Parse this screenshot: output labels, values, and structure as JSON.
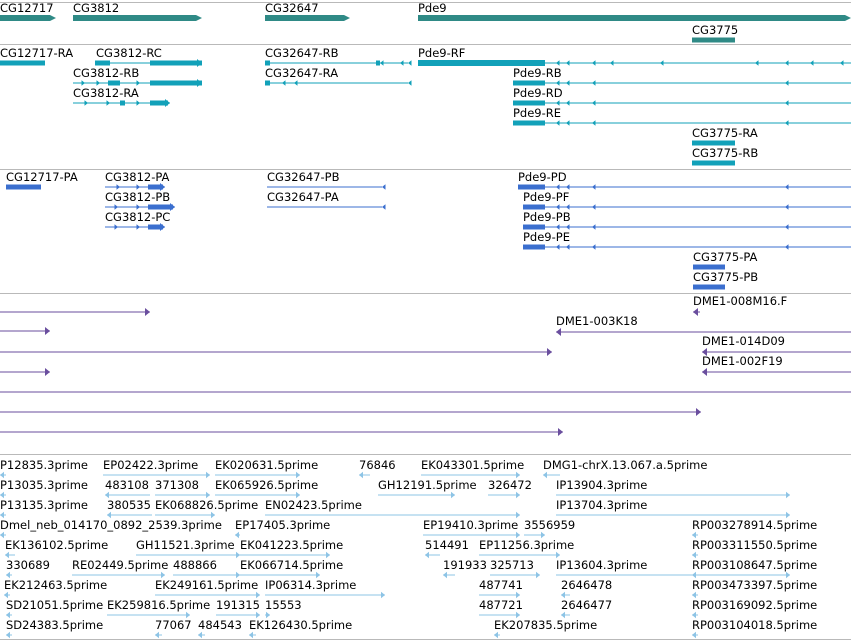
{
  "colors": {
    "gene": "#2f8a86",
    "transcript": "#12a1b9",
    "protein": "#3b6fcf",
    "clone": "#6a4e9e",
    "est": "#8dc4e6",
    "divider": "#b9b9b9"
  },
  "tracks": {
    "genes": {
      "labels": [
        "CG12717",
        "CG3812",
        "CG32647",
        "Pde9",
        "CG3775"
      ]
    },
    "transcripts": {
      "labels": [
        "CG12717-RA",
        "CG3812-RC",
        "CG3812-RB",
        "CG3812-RA",
        "CG32647-RB",
        "CG32647-RA",
        "Pde9-RF",
        "Pde9-RB",
        "Pde9-RD",
        "Pde9-RE",
        "CG3775-RA",
        "CG3775-RB"
      ]
    },
    "proteins": {
      "labels": [
        "CG12717-PA",
        "CG3812-PA",
        "CG3812-PB",
        "CG3812-PC",
        "CG32647-PB",
        "CG32647-PA",
        "Pde9-PD",
        "Pde9-PF",
        "Pde9-PB",
        "Pde9-PE",
        "CG3775-PA",
        "CG3775-PB"
      ]
    },
    "clones": {
      "labels": [
        "DME1-008M16.F",
        "DME1-003K18",
        "DME1-014D09",
        "DME1-002F19"
      ]
    },
    "ests": {
      "labels": [
        "P12835.3prime",
        "EP02422.3prime",
        "EK020631.5prime",
        "76846",
        "EK043301.5prime",
        "DMG1-chrX.13.067.a.5prime",
        "P13035.3prime",
        "483108",
        "371308",
        "EK065926.5prime",
        "GH12191.5prime",
        "326472",
        "IP13904.3prime",
        "P13135.3prime",
        "380535",
        "EK068826.5prime",
        "EN02423.5prime",
        "IP13704.3prime",
        "Dmel_neb_014170_0892_2539.3prime",
        "EP17405.3prime",
        "EP19410.3prime",
        "3556959",
        "RP003278914.5prime",
        "EK136102.5prime",
        "GH11521.3prime",
        "EK041223.5prime",
        "514491",
        "EP11256.3prime",
        "RP003311550.5prime",
        "330689",
        "RE02449.5prime",
        "488866",
        "EK066714.5prime",
        "191933",
        "325713",
        "IP13604.3prime",
        "RP003108647.5prime",
        "EK212463.5prime",
        "EK249161.5prime",
        "IP06314.3prime",
        "487741",
        "2646478",
        "RP003473397.5prime",
        "SD21051.5prime",
        "EK259816.5prime",
        "191315",
        "15553",
        "487721",
        "2646477",
        "RP003169092.5prime",
        "SD24383.5prime",
        "77067",
        "484543",
        "EK126430.5prime",
        "EK207835.5prime",
        "RP003104018.5prime"
      ]
    }
  }
}
